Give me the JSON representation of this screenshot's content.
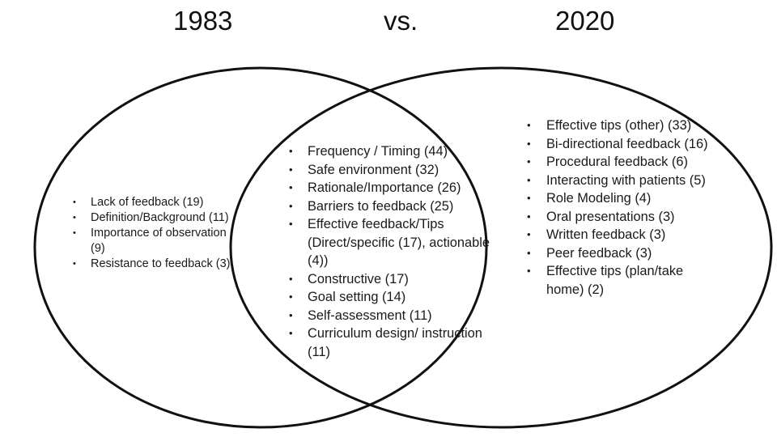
{
  "headings": {
    "left": "1983",
    "middle": "vs.",
    "right": "2020"
  },
  "bullet_glyph": "•",
  "left_only_items": [
    "Lack of feedback (19)",
    "Definition/Background (11)",
    "Importance of observation (9)",
    "Resistance to feedback (3)"
  ],
  "overlap_items": [
    "Frequency / Timing (44)",
    "Safe environment (32)",
    "Rationale/Importance (26)",
    "Barriers to feedback (25)",
    "Effective feedback/Tips (Direct/specific (17), actionable (4))",
    "Constructive (17)",
    "Goal setting (14)",
    "Self-assessment (11)",
    "Curriculum design/ instruction (11)"
  ],
  "right_only_items": [
    "Effective tips (other) (33)",
    "Bi-directional feedback (16)",
    "Procedural feedback (6)",
    "Interacting with patients (5)",
    "Role Modeling (4)",
    "Oral presentations (3)",
    "Written feedback (3)",
    "Peer feedback (3)",
    "Effective tips (plan/take home) (2)"
  ]
}
